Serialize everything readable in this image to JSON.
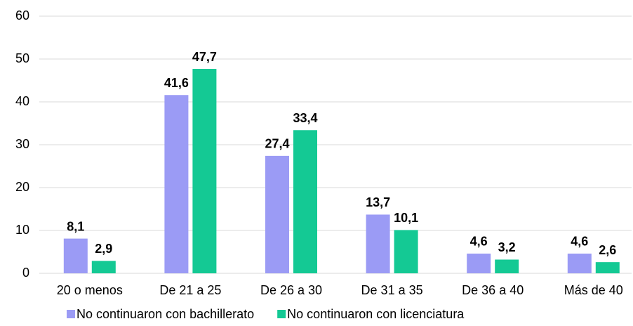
{
  "chart_data": {
    "type": "bar",
    "categories": [
      "20 o menos",
      "De 21 a 25",
      "De 26 a 30",
      "De 31 a 35",
      "De 36 a 40",
      "Más de 40"
    ],
    "series": [
      {
        "name": "No continuaron con bachillerato",
        "color": "#9b9bf5",
        "values": [
          8.1,
          41.6,
          27.4,
          13.7,
          4.6,
          4.6
        ],
        "value_labels": [
          "8,1",
          "41,6",
          "27,4",
          "13,7",
          "4,6",
          "4,6"
        ]
      },
      {
        "name": "No continuaron con licenciatura",
        "color": "#14c994",
        "values": [
          2.9,
          47.7,
          33.4,
          10.1,
          3.2,
          2.6
        ],
        "value_labels": [
          "2,9",
          "47,7",
          "33,4",
          "10,1",
          "3,2",
          "2,6"
        ]
      }
    ],
    "ylim": [
      0,
      60
    ],
    "yticks": [
      0,
      10,
      20,
      30,
      40,
      50,
      60
    ],
    "grid": true,
    "legend": "bottom"
  }
}
